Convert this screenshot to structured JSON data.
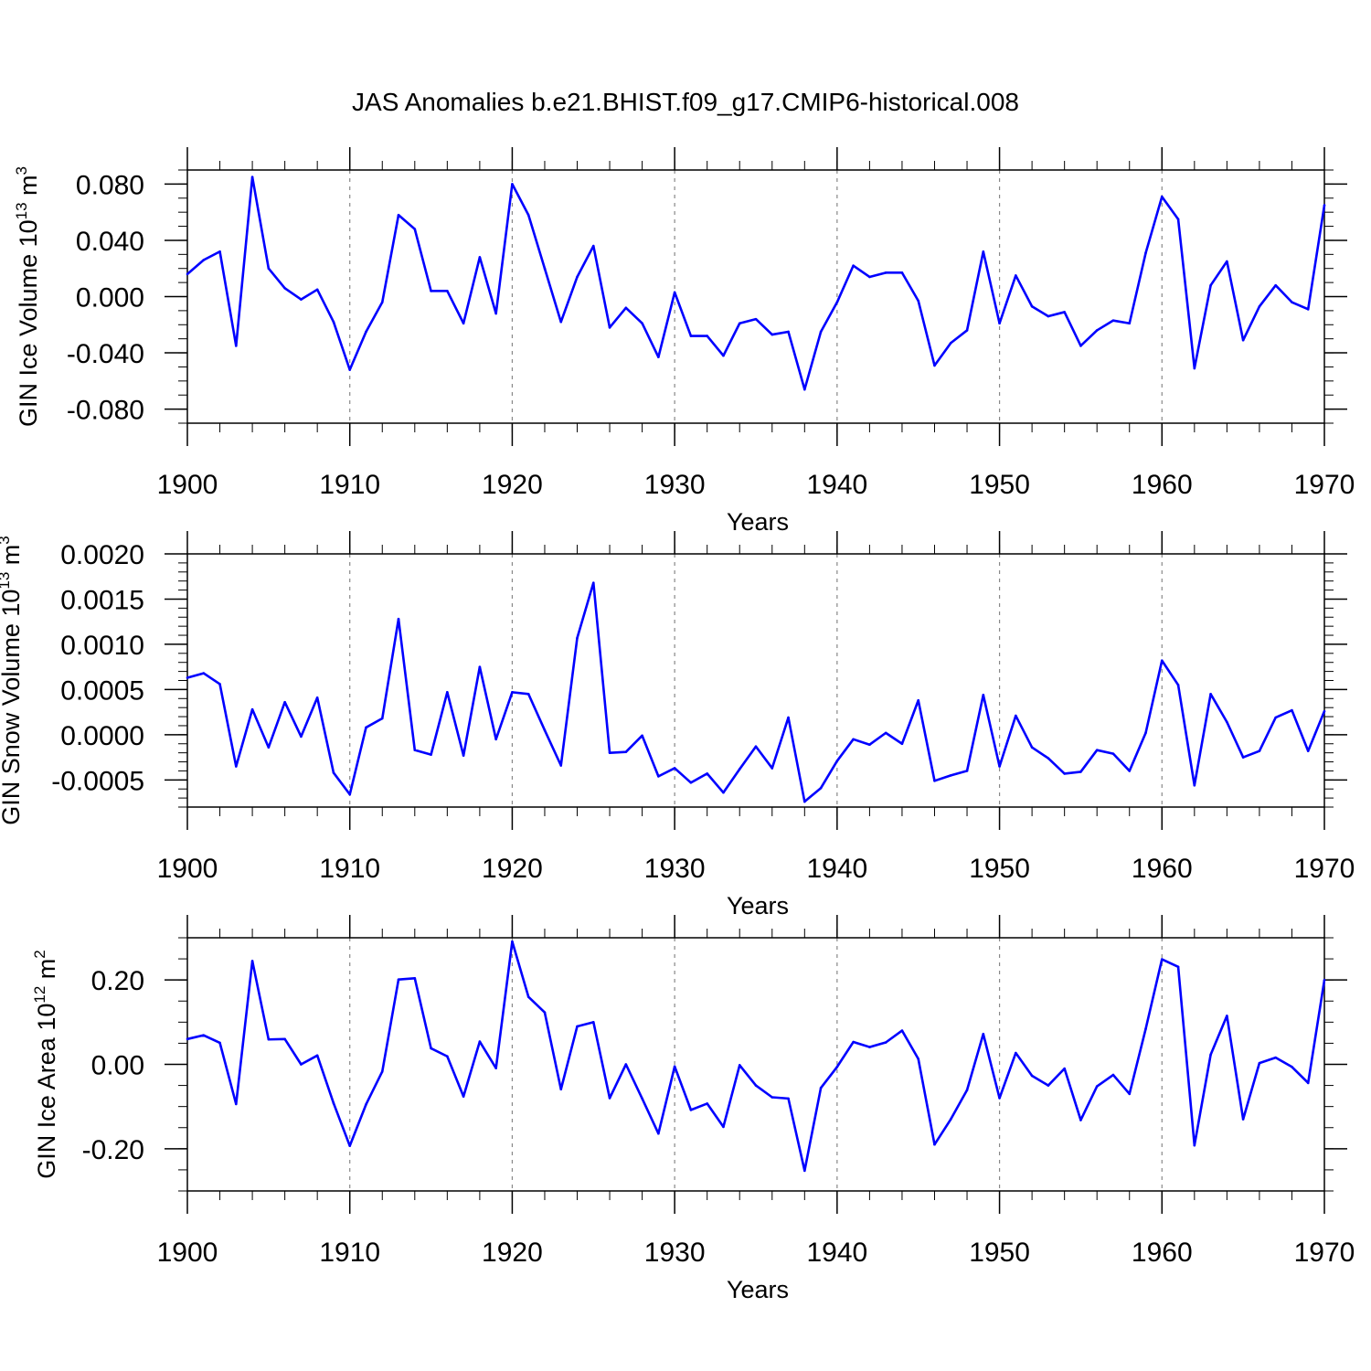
{
  "title": "JAS Anomalies b.e21.BHIST.f09_g17.CMIP6-historical.008",
  "colors": {
    "series": "#0000ff",
    "axis": "#000000",
    "grid": "#888888"
  },
  "chart_data": [
    {
      "type": "line",
      "ylabel_main": "GIN Ice Volume 10",
      "ylabel_exp": "13",
      "ylabel_unit": " m",
      "ylabel_unit_exp": "3",
      "xlabel": "Years",
      "xlim": [
        1900,
        1970
      ],
      "ylim": [
        -0.09,
        0.09
      ],
      "y_ticks": [
        -0.08,
        -0.04,
        0.0,
        0.04,
        0.08
      ],
      "y_tick_labels": [
        "-0.080",
        "-0.040",
        "0.000",
        "0.040",
        "0.080"
      ],
      "y_minor_step": 0.01,
      "x_ticks": [
        1900,
        1910,
        1920,
        1930,
        1940,
        1950,
        1960,
        1970
      ],
      "x_tick_labels": [
        "1900",
        "1910",
        "1920",
        "1930",
        "1940",
        "1950",
        "1960",
        "1970"
      ],
      "grid_x": [
        1910,
        1920,
        1930,
        1940,
        1950,
        1960
      ],
      "x": [
        1900,
        1901,
        1902,
        1903,
        1904,
        1905,
        1906,
        1907,
        1908,
        1909,
        1910,
        1911,
        1912,
        1913,
        1914,
        1915,
        1916,
        1917,
        1918,
        1919,
        1920,
        1921,
        1922,
        1923,
        1924,
        1925,
        1926,
        1927,
        1928,
        1929,
        1930,
        1931,
        1932,
        1933,
        1934,
        1935,
        1936,
        1937,
        1938,
        1939,
        1940,
        1941,
        1942,
        1943,
        1944,
        1945,
        1946,
        1947,
        1948,
        1949,
        1950,
        1951,
        1952,
        1953,
        1954,
        1955,
        1956,
        1957,
        1958,
        1959,
        1960,
        1961,
        1962,
        1963,
        1964,
        1965,
        1966,
        1967,
        1968,
        1969,
        1970
      ],
      "values": [
        0.016,
        0.026,
        0.032,
        -0.035,
        0.085,
        0.02,
        0.006,
        -0.002,
        0.005,
        -0.018,
        -0.052,
        -0.025,
        -0.004,
        0.058,
        0.048,
        0.004,
        0.004,
        -0.019,
        0.028,
        -0.012,
        0.08,
        0.058,
        0.02,
        -0.018,
        0.014,
        0.036,
        -0.022,
        -0.008,
        -0.019,
        -0.043,
        0.003,
        -0.028,
        -0.028,
        -0.042,
        -0.019,
        -0.016,
        -0.027,
        -0.025,
        -0.066,
        -0.025,
        -0.004,
        0.022,
        0.014,
        0.017,
        0.017,
        -0.003,
        -0.049,
        -0.033,
        -0.024,
        0.032,
        -0.019,
        0.015,
        -0.007,
        -0.014,
        -0.011,
        -0.035,
        -0.024,
        -0.017,
        -0.019,
        0.031,
        0.071,
        0.055,
        -0.051,
        0.008,
        0.025,
        -0.031,
        -0.007,
        0.008,
        -0.004,
        -0.009,
        0.065
      ]
    },
    {
      "type": "line",
      "ylabel_main": "GIN Snow Volume 10",
      "ylabel_exp": "13",
      "ylabel_unit": " m",
      "ylabel_unit_exp": "3",
      "xlabel": "Years",
      "xlim": [
        1900,
        1970
      ],
      "ylim": [
        -0.0008,
        0.002
      ],
      "y_ticks": [
        -0.0005,
        0.0,
        0.0005,
        0.001,
        0.0015,
        0.002
      ],
      "y_tick_labels": [
        "-0.0005",
        "0.0000",
        "0.0005",
        "0.0010",
        "0.0015",
        "0.0020"
      ],
      "y_minor_step": 0.0001,
      "x_ticks": [
        1900,
        1910,
        1920,
        1930,
        1940,
        1950,
        1960,
        1970
      ],
      "x_tick_labels": [
        "1900",
        "1910",
        "1920",
        "1930",
        "1940",
        "1950",
        "1960",
        "1970"
      ],
      "grid_x": [
        1910,
        1920,
        1930,
        1940,
        1950,
        1960
      ],
      "x": [
        1900,
        1901,
        1902,
        1903,
        1904,
        1905,
        1906,
        1907,
        1908,
        1909,
        1910,
        1911,
        1912,
        1913,
        1914,
        1915,
        1916,
        1917,
        1918,
        1919,
        1920,
        1921,
        1922,
        1923,
        1924,
        1925,
        1926,
        1927,
        1928,
        1929,
        1930,
        1931,
        1932,
        1933,
        1934,
        1935,
        1936,
        1937,
        1938,
        1939,
        1940,
        1941,
        1942,
        1943,
        1944,
        1945,
        1946,
        1947,
        1948,
        1949,
        1950,
        1951,
        1952,
        1953,
        1954,
        1955,
        1956,
        1957,
        1958,
        1959,
        1960,
        1961,
        1962,
        1963,
        1964,
        1965,
        1966,
        1967,
        1968,
        1969,
        1970
      ],
      "values": [
        0.00063,
        0.00068,
        0.00056,
        -0.00035,
        0.00028,
        -0.00014,
        0.00036,
        -2e-05,
        0.00041,
        -0.00042,
        -0.00066,
        8e-05,
        0.00018,
        0.00128,
        -0.00017,
        -0.00022,
        0.00047,
        -0.00023,
        0.00075,
        -5e-05,
        0.00047,
        0.00045,
        5e-05,
        -0.00034,
        0.00107,
        0.00168,
        -0.0002,
        -0.00019,
        -1e-05,
        -0.00046,
        -0.00037,
        -0.00053,
        -0.00043,
        -0.00064,
        -0.00038,
        -0.00013,
        -0.00037,
        0.00019,
        -0.00074,
        -0.00059,
        -0.00029,
        -5e-05,
        -0.00011,
        2e-05,
        -0.0001,
        0.00038,
        -0.00051,
        -0.00045,
        -0.0004,
        0.00044,
        -0.00035,
        0.00021,
        -0.00014,
        -0.00026,
        -0.00043,
        -0.00041,
        -0.00017,
        -0.00021,
        -0.0004,
        2e-05,
        0.00082,
        0.00055,
        -0.00056,
        0.00045,
        0.00014,
        -0.00025,
        -0.00018,
        0.00019,
        0.00027,
        -0.00018,
        0.00026
      ]
    },
    {
      "type": "line",
      "ylabel_main": "GIN Ice Area 10",
      "ylabel_exp": "12",
      "ylabel_unit": " m",
      "ylabel_unit_exp": "2",
      "xlabel": "Years",
      "xlim": [
        1900,
        1970
      ],
      "ylim": [
        -0.3,
        0.3
      ],
      "y_ticks": [
        -0.2,
        0.0,
        0.2
      ],
      "y_tick_labels": [
        "-0.20",
        "0.00",
        "0.20"
      ],
      "y_minor_step": 0.05,
      "x_ticks": [
        1900,
        1910,
        1920,
        1930,
        1940,
        1950,
        1960,
        1970
      ],
      "x_tick_labels": [
        "1900",
        "1910",
        "1920",
        "1930",
        "1940",
        "1950",
        "1960",
        "1970"
      ],
      "grid_x": [
        1910,
        1920,
        1930,
        1940,
        1950,
        1960
      ],
      "x": [
        1900,
        1901,
        1902,
        1903,
        1904,
        1905,
        1906,
        1907,
        1908,
        1909,
        1910,
        1911,
        1912,
        1913,
        1914,
        1915,
        1916,
        1917,
        1918,
        1919,
        1920,
        1921,
        1922,
        1923,
        1924,
        1925,
        1926,
        1927,
        1928,
        1929,
        1930,
        1931,
        1932,
        1933,
        1934,
        1935,
        1936,
        1937,
        1938,
        1939,
        1940,
        1941,
        1942,
        1943,
        1944,
        1945,
        1946,
        1947,
        1948,
        1949,
        1950,
        1951,
        1952,
        1953,
        1954,
        1955,
        1956,
        1957,
        1958,
        1959,
        1960,
        1961,
        1962,
        1963,
        1964,
        1965,
        1966,
        1967,
        1968,
        1969,
        1970
      ],
      "values": [
        0.06,
        0.069,
        0.051,
        -0.094,
        0.245,
        0.059,
        0.06,
        0.0,
        0.021,
        -0.092,
        -0.193,
        -0.095,
        -0.017,
        0.201,
        0.204,
        0.038,
        0.019,
        -0.076,
        0.054,
        -0.009,
        0.291,
        0.16,
        0.123,
        -0.059,
        0.09,
        0.1,
        -0.08,
        0.0,
        -0.081,
        -0.164,
        -0.005,
        -0.108,
        -0.093,
        -0.148,
        -0.002,
        -0.05,
        -0.078,
        -0.081,
        -0.252,
        -0.056,
        -0.006,
        0.053,
        0.041,
        0.052,
        0.08,
        0.013,
        -0.19,
        -0.13,
        -0.061,
        0.072,
        -0.08,
        0.027,
        -0.027,
        -0.05,
        -0.01,
        -0.132,
        -0.052,
        -0.025,
        -0.07,
        0.084,
        0.249,
        0.231,
        -0.192,
        0.023,
        0.115,
        -0.13,
        0.003,
        0.016,
        -0.006,
        -0.044,
        0.2
      ]
    }
  ]
}
